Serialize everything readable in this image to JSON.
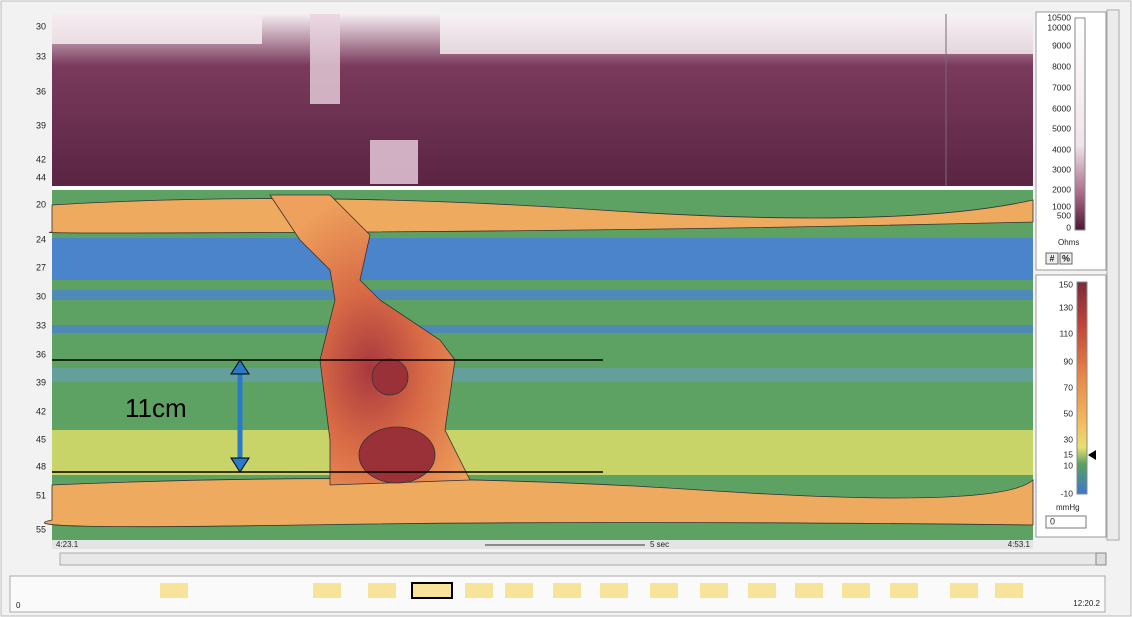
{
  "panel": {
    "impedance_axis_labels": [
      "30",
      "33",
      "36",
      "39",
      "42",
      "44"
    ],
    "pressure_axis_labels": [
      "20",
      "24",
      "27",
      "30",
      "33",
      "36",
      "39",
      "42",
      "45",
      "48",
      "51",
      "55"
    ],
    "annotation": "11cm",
    "time_start": "4:23.1",
    "time_scale": "5 sec",
    "time_end": "4:53.1"
  },
  "impedance_scale": {
    "labels": [
      "10500",
      "10000",
      "9000",
      "8000",
      "7000",
      "6000",
      "5000",
      "4000",
      "3000",
      "2000",
      "1000",
      "500",
      "0"
    ],
    "unit": "Ohms",
    "buttons": [
      "#",
      "%"
    ]
  },
  "pressure_scale": {
    "labels": [
      "150",
      "130",
      "110",
      "90",
      "70",
      "50",
      "30",
      "15",
      "10",
      "-10"
    ],
    "unit": "mmHg",
    "input": "0"
  },
  "timeline": {
    "left": "0",
    "right": "12:20.2"
  }
}
